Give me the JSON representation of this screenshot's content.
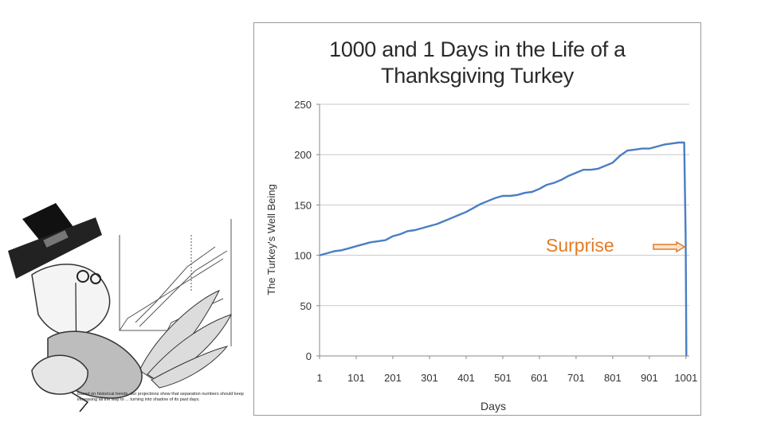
{
  "caption": "Based on historical trends, our projections show that separation numbers should keep increasing all the way to ... turning into shadow of its past days.",
  "chart_data": {
    "type": "line",
    "title_line1": "1000 and 1 Days in the Life of a",
    "title_line2": "Thanksgiving Turkey",
    "xlabel": "Days",
    "ylabel": "The Turkey's Well Being",
    "xlim": [
      1,
      1010
    ],
    "ylim": [
      0,
      250
    ],
    "x_ticks": [
      1,
      101,
      201,
      301,
      401,
      501,
      601,
      701,
      801,
      901,
      1001
    ],
    "y_ticks": [
      0,
      50,
      100,
      150,
      200,
      250
    ],
    "grid": true,
    "annotation": {
      "text": "Surprise",
      "color": "#e57b22"
    },
    "series": [
      {
        "color": "#4a7ec3",
        "points": [
          [
            1,
            100
          ],
          [
            21,
            102
          ],
          [
            41,
            104
          ],
          [
            61,
            105
          ],
          [
            81,
            107
          ],
          [
            101,
            109
          ],
          [
            121,
            111
          ],
          [
            141,
            113
          ],
          [
            161,
            114
          ],
          [
            181,
            115
          ],
          [
            201,
            119
          ],
          [
            221,
            121
          ],
          [
            241,
            124
          ],
          [
            261,
            125
          ],
          [
            281,
            127
          ],
          [
            301,
            129
          ],
          [
            321,
            131
          ],
          [
            341,
            134
          ],
          [
            361,
            137
          ],
          [
            381,
            140
          ],
          [
            401,
            143
          ],
          [
            421,
            147
          ],
          [
            441,
            151
          ],
          [
            461,
            154
          ],
          [
            481,
            157
          ],
          [
            501,
            159
          ],
          [
            521,
            159
          ],
          [
            541,
            160
          ],
          [
            561,
            162
          ],
          [
            581,
            163
          ],
          [
            601,
            166
          ],
          [
            621,
            170
          ],
          [
            641,
            172
          ],
          [
            661,
            175
          ],
          [
            681,
            179
          ],
          [
            701,
            182
          ],
          [
            721,
            185
          ],
          [
            741,
            185
          ],
          [
            761,
            186
          ],
          [
            781,
            189
          ],
          [
            801,
            192
          ],
          [
            821,
            199
          ],
          [
            841,
            204
          ],
          [
            861,
            205
          ],
          [
            881,
            206
          ],
          [
            901,
            206
          ],
          [
            921,
            208
          ],
          [
            941,
            210
          ],
          [
            961,
            211
          ],
          [
            981,
            212
          ],
          [
            996,
            212
          ],
          [
            1000,
            120
          ],
          [
            1001,
            60
          ],
          [
            1002,
            0
          ]
        ]
      }
    ]
  }
}
